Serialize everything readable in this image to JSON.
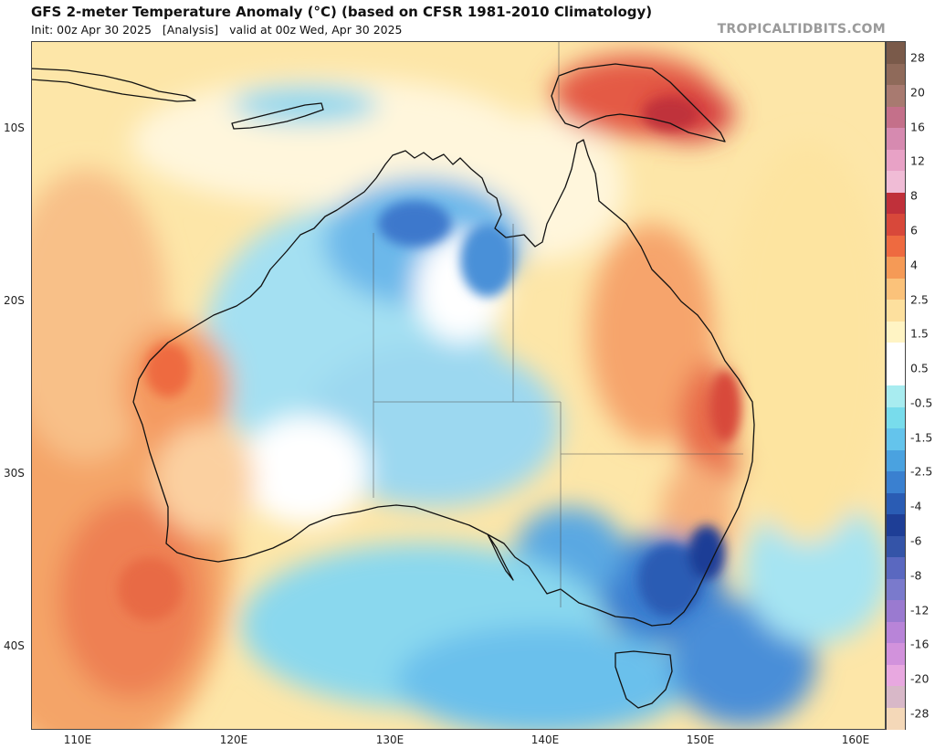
{
  "header": {
    "title": "GFS 2-meter Temperature Anomaly (°C) (based on CFSR 1981-2010 Climatology)",
    "init": "Init: 00z Apr 30 2025",
    "run_type": "[Analysis]",
    "valid": "valid at 00z Wed, Apr 30 2025",
    "watermark": "TROPICALTIDBITS.COM"
  },
  "map": {
    "region": "Australia",
    "lat_labels": [
      "10S",
      "20S",
      "30S",
      "40S"
    ],
    "lon_labels": [
      "110E",
      "120E",
      "130E",
      "140E",
      "150E",
      "160E"
    ]
  },
  "colorbar": {
    "labels": [
      "28",
      "20",
      "16",
      "12",
      "8",
      "6",
      "4",
      "2.5",
      "1.5",
      "0.5",
      "-0.5",
      "-1.5",
      "-2.5",
      "-4",
      "-6",
      "-8",
      "-12",
      "-16",
      "-20",
      "-28"
    ],
    "colors": [
      "#7a5a4a",
      "#8f6a5a",
      "#a87a70",
      "#c4708a",
      "#d68ab0",
      "#e8a2c6",
      "#f0bcd6",
      "#c0303a",
      "#d8483a",
      "#ee6a40",
      "#f59a56",
      "#fbc27a",
      "#fde09e",
      "#fff4c4",
      "#ffffff",
      "#ffffff",
      "#a8ecf0",
      "#78dcec",
      "#64c4ec",
      "#4aa2e0",
      "#3a80d0",
      "#2a5cb4",
      "#1e3e96",
      "#3454a8",
      "#5a68c0",
      "#7a7acc",
      "#9a7ad0",
      "#b884d8",
      "#d292dc",
      "#e8a8e0",
      "#d8b8c8",
      "#f4d8b8"
    ]
  }
}
